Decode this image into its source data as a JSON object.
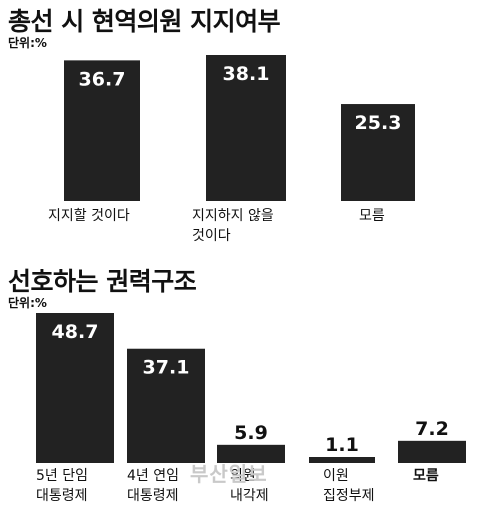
{
  "chart_data": [
    {
      "type": "bar",
      "title": "총선 시 현역의원 지지여부",
      "unit": "단위:%",
      "categories": [
        [
          "지지할 것이다"
        ],
        [
          "지지하지 않을",
          "것이다"
        ],
        [
          "모름"
        ]
      ],
      "values": [
        36.7,
        38.1,
        25.3
      ],
      "ylim": [
        0,
        38.1
      ]
    },
    {
      "type": "bar",
      "title": "선호하는 권력구조",
      "unit": "단위:%",
      "categories": [
        [
          "5년 단임",
          "대통령제"
        ],
        [
          "4년 연임",
          "대통령제"
        ],
        [
          "의원",
          "내각제"
        ],
        [
          "이원",
          "집정부제"
        ],
        [
          "모름"
        ]
      ],
      "values": [
        48.7,
        37.1,
        5.9,
        1.1,
        7.2
      ],
      "ylim": [
        0,
        48.7
      ]
    }
  ],
  "watermark": "부산일보",
  "colors": {
    "bar": "#222222",
    "value_text": "#ffffff",
    "value_text_outside": "#111111"
  }
}
